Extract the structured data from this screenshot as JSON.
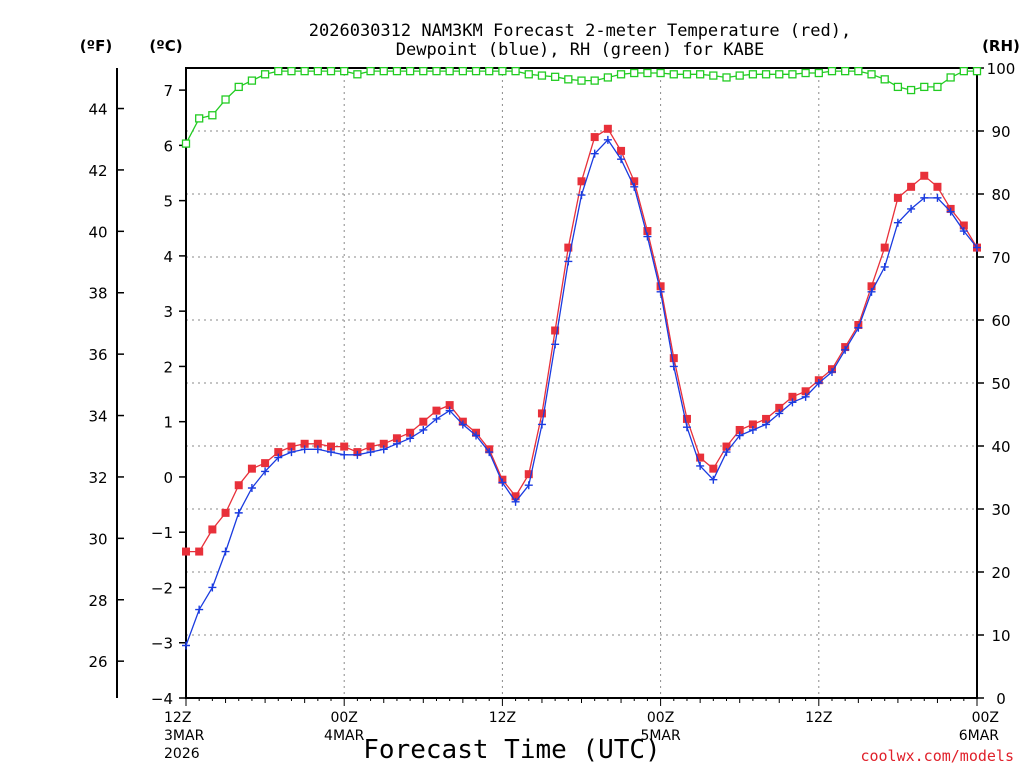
{
  "chart_data": {
    "type": "line",
    "title_line1": "2026030312 NAM3KM Forecast 2-meter Temperature (red),",
    "title_line2": "Dewpoint (blue), RH (green) for KABE",
    "xlabel": "Forecast Time (UTC)",
    "credit": "coolwx.com/models",
    "units": {
      "fahrenheit": "(ºF)",
      "celsius": "(ºC)",
      "rh": "(RH)"
    },
    "x_range_hours": [
      0,
      60
    ],
    "celsius_axis": {
      "ylim": [
        -4,
        7.4
      ],
      "ticks": [
        -4,
        -3,
        -2,
        -1,
        0,
        1,
        2,
        3,
        4,
        5,
        6,
        7
      ]
    },
    "fahrenheit_axis": {
      "ylim": [
        24.8,
        45.32
      ],
      "ticks": [
        26,
        28,
        30,
        32,
        34,
        36,
        38,
        40,
        42,
        44
      ]
    },
    "rh_axis": {
      "ylim": [
        0,
        100
      ],
      "ticks": [
        0,
        10,
        20,
        30,
        40,
        50,
        60,
        70,
        80,
        90,
        100
      ]
    },
    "x_ticks": [
      {
        "hour": 0,
        "label": "12Z",
        "date": "3MAR",
        "year": "2026"
      },
      {
        "hour": 12,
        "label": "00Z",
        "date": "4MAR",
        "year": ""
      },
      {
        "hour": 24,
        "label": "12Z",
        "date": "",
        "year": ""
      },
      {
        "hour": 36,
        "label": "00Z",
        "date": "5MAR",
        "year": ""
      },
      {
        "hour": 48,
        "label": "12Z",
        "date": "",
        "year": ""
      },
      {
        "hour": 60,
        "label": "00Z",
        "date": "6MAR",
        "year": ""
      }
    ],
    "hours": [
      0,
      1,
      2,
      3,
      4,
      5,
      6,
      7,
      8,
      9,
      10,
      11,
      12,
      13,
      14,
      15,
      16,
      17,
      18,
      19,
      20,
      21,
      22,
      23,
      24,
      25,
      26,
      27,
      28,
      29,
      30,
      31,
      32,
      33,
      34,
      35,
      36,
      37,
      38,
      39,
      40,
      41,
      42,
      43,
      44,
      45,
      46,
      47,
      48,
      49,
      50,
      51,
      52,
      53,
      54,
      55,
      56,
      57,
      58,
      59,
      60
    ],
    "series": [
      {
        "name": "2-meter Temperature",
        "color": "#e8303a",
        "marker": "square",
        "axis": "celsius",
        "values": [
          -1.35,
          -1.35,
          -0.95,
          -0.65,
          -0.15,
          0.15,
          0.25,
          0.45,
          0.55,
          0.6,
          0.6,
          0.55,
          0.55,
          0.45,
          0.55,
          0.6,
          0.7,
          0.8,
          1.0,
          1.2,
          1.3,
          1.0,
          0.8,
          0.5,
          -0.05,
          -0.35,
          0.05,
          1.15,
          2.65,
          4.15,
          5.35,
          6.15,
          6.3,
          5.9,
          5.35,
          4.45,
          3.45,
          2.15,
          1.05,
          0.35,
          0.15,
          0.55,
          0.85,
          0.95,
          1.05,
          1.25,
          1.45,
          1.55,
          1.75,
          1.95,
          2.35,
          2.75,
          3.45,
          4.15,
          5.05,
          5.25,
          5.45,
          5.25,
          4.85,
          4.55,
          4.15
        ]
      },
      {
        "name": "Dewpoint",
        "color": "#1a3be0",
        "marker": "plus",
        "axis": "celsius",
        "values": [
          -3.05,
          -2.4,
          -2.0,
          -1.35,
          -0.65,
          -0.2,
          0.1,
          0.35,
          0.45,
          0.5,
          0.5,
          0.45,
          0.4,
          0.4,
          0.45,
          0.5,
          0.6,
          0.7,
          0.85,
          1.05,
          1.2,
          0.95,
          0.75,
          0.45,
          -0.1,
          -0.45,
          -0.15,
          0.95,
          2.4,
          3.9,
          5.1,
          5.85,
          6.1,
          5.75,
          5.25,
          4.35,
          3.35,
          2.0,
          0.9,
          0.2,
          -0.05,
          0.45,
          0.75,
          0.85,
          0.95,
          1.15,
          1.35,
          1.45,
          1.7,
          1.9,
          2.3,
          2.7,
          3.35,
          3.8,
          4.6,
          4.85,
          5.05,
          5.05,
          4.8,
          4.45,
          4.15
        ]
      },
      {
        "name": "RH",
        "color": "#22cc22",
        "marker": "open-square",
        "axis": "rh",
        "values": [
          88,
          92,
          92.5,
          95,
          97,
          98,
          99,
          99.5,
          99.5,
          99.5,
          99.5,
          99.5,
          99.5,
          99,
          99.5,
          99.5,
          99.5,
          99.5,
          99.5,
          99.5,
          99.5,
          99.5,
          99.5,
          99.5,
          99.5,
          99.5,
          99,
          98.8,
          98.6,
          98.2,
          98,
          98,
          98.5,
          99,
          99.2,
          99.2,
          99.2,
          99,
          99,
          99,
          98.8,
          98.5,
          98.8,
          99,
          99,
          99,
          99,
          99.2,
          99.2,
          99.5,
          99.5,
          99.5,
          99,
          98.2,
          97,
          96.5,
          97,
          97,
          98.5,
          99.5,
          99.5
        ]
      }
    ]
  }
}
